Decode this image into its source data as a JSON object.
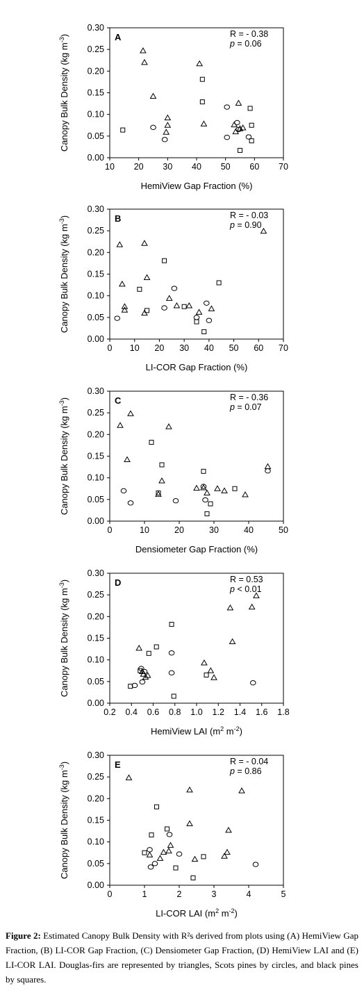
{
  "chart_data": [
    {
      "type": "scatter",
      "panel": "A",
      "xlabel": "HemiView Gap Fraction (%)",
      "ylabel": "Canopy Bulk Density (kg m-3)",
      "xlim": [
        10,
        70
      ],
      "ylim": [
        0,
        0.3
      ],
      "xticks": [
        "10",
        "20",
        "30",
        "40",
        "50",
        "60",
        "70"
      ],
      "yticks": [
        "0.00",
        "0.05",
        "0.10",
        "0.15",
        "0.20",
        "0.25",
        "0.30"
      ],
      "stat_r": "R = - 0.38",
      "stat_p": "p = 0.06",
      "series": [
        {
          "marker": "triangle",
          "points": [
            [
              21.5,
              0.247
            ],
            [
              22,
              0.22
            ],
            [
              25,
              0.142
            ],
            [
              30,
              0.092
            ],
            [
              30,
              0.075
            ],
            [
              29.5,
              0.059
            ],
            [
              41,
              0.217
            ],
            [
              42.5,
              0.078
            ],
            [
              54.5,
              0.126
            ],
            [
              53,
              0.076
            ],
            [
              53.5,
              0.06
            ],
            [
              55,
              0.067
            ],
            [
              56,
              0.069
            ]
          ]
        },
        {
          "marker": "circle",
          "points": [
            [
              25,
              0.07
            ],
            [
              29,
              0.042
            ],
            [
              50.5,
              0.117
            ],
            [
              54,
              0.081
            ],
            [
              54.5,
              0.065
            ],
            [
              50.5,
              0.047
            ],
            [
              58,
              0.048
            ]
          ]
        },
        {
          "marker": "square",
          "points": [
            [
              14.5,
              0.064
            ],
            [
              42,
              0.181
            ],
            [
              42,
              0.129
            ],
            [
              58.5,
              0.114
            ],
            [
              59,
              0.075
            ],
            [
              59,
              0.039
            ],
            [
              55,
              0.017
            ]
          ]
        }
      ]
    },
    {
      "type": "scatter",
      "panel": "B",
      "xlabel": "LI-COR Gap Fraction (%)",
      "ylabel": "Canopy Bulk Density (kg m-3)",
      "xlim": [
        0,
        70
      ],
      "ylim": [
        0,
        0.3
      ],
      "xticks": [
        "0",
        "10",
        "20",
        "30",
        "40",
        "50",
        "60",
        "70"
      ],
      "yticks": [
        "0.00",
        "0.05",
        "0.10",
        "0.15",
        "0.20",
        "0.25",
        "0.30"
      ],
      "stat_r": "R = - 0.03",
      "stat_p": "p = 0.90",
      "series": [
        {
          "marker": "triangle",
          "points": [
            [
              4,
              0.218
            ],
            [
              5,
              0.127
            ],
            [
              6,
              0.075
            ],
            [
              6,
              0.067
            ],
            [
              14,
              0.221
            ],
            [
              15,
              0.142
            ],
            [
              14,
              0.06
            ],
            [
              24,
              0.094
            ],
            [
              27,
              0.077
            ],
            [
              32,
              0.077
            ],
            [
              36,
              0.062
            ],
            [
              41,
              0.07
            ],
            [
              62,
              0.249
            ]
          ]
        },
        {
          "marker": "circle",
          "points": [
            [
              3,
              0.048
            ],
            [
              22,
              0.072
            ],
            [
              26,
              0.117
            ],
            [
              35,
              0.05
            ],
            [
              39,
              0.083
            ],
            [
              40,
              0.043
            ]
          ]
        },
        {
          "marker": "square",
          "points": [
            [
              12,
              0.115
            ],
            [
              15,
              0.066
            ],
            [
              22,
              0.181
            ],
            [
              30,
              0.075
            ],
            [
              35,
              0.04
            ],
            [
              38,
              0.017
            ],
            [
              44,
              0.13
            ]
          ]
        }
      ]
    },
    {
      "type": "scatter",
      "panel": "C",
      "xlabel": "Densiometer Gap Fraction (%)",
      "ylabel": "Canopy Bulk Density (kg m-3)",
      "xlim": [
        0,
        50
      ],
      "ylim": [
        0,
        0.3
      ],
      "xticks": [
        "0",
        "10",
        "20",
        "30",
        "40",
        "50"
      ],
      "yticks": [
        "0.00",
        "0.05",
        "0.10",
        "0.15",
        "0.20",
        "0.25",
        "0.30"
      ],
      "stat_r": "R = - 0.36",
      "stat_p": "p = 0.07",
      "series": [
        {
          "marker": "triangle",
          "points": [
            [
              3,
              0.221
            ],
            [
              6,
              0.248
            ],
            [
              5,
              0.142
            ],
            [
              14,
              0.062
            ],
            [
              15,
              0.093
            ],
            [
              17,
              0.218
            ],
            [
              25,
              0.076
            ],
            [
              27,
              0.077
            ],
            [
              28,
              0.065
            ],
            [
              31,
              0.075
            ],
            [
              33,
              0.07
            ],
            [
              39,
              0.061
            ],
            [
              45.5,
              0.126
            ]
          ]
        },
        {
          "marker": "circle",
          "points": [
            [
              4,
              0.07
            ],
            [
              6,
              0.042
            ],
            [
              19,
              0.047
            ],
            [
              27,
              0.08
            ],
            [
              27.5,
              0.049
            ],
            [
              45.5,
              0.116
            ]
          ]
        },
        {
          "marker": "square",
          "points": [
            [
              12,
              0.182
            ],
            [
              14,
              0.065
            ],
            [
              15,
              0.13
            ],
            [
              27,
              0.115
            ],
            [
              28,
              0.017
            ],
            [
              29,
              0.04
            ],
            [
              36,
              0.075
            ]
          ]
        }
      ]
    },
    {
      "type": "scatter",
      "panel": "D",
      "xlabel": "HemiView LAI (m2 m-2)",
      "ylabel": "Canopy Bulk Density (kg m-3)",
      "xlim": [
        0.2,
        1.8
      ],
      "ylim": [
        0,
        0.3
      ],
      "xticks": [
        "0.2",
        "0.4",
        "0.6",
        "0.8",
        "1.0",
        "1.2",
        "1.4",
        "1.6",
        "1.8"
      ],
      "yticks": [
        "0.00",
        "0.05",
        "0.10",
        "0.15",
        "0.20",
        "0.25",
        "0.30"
      ],
      "stat_r": "R = 0.53",
      "stat_p": "p < 0.01",
      "series": [
        {
          "marker": "triangle",
          "points": [
            [
              0.47,
              0.127
            ],
            [
              0.5,
              0.073
            ],
            [
              0.51,
              0.067
            ],
            [
              0.53,
              0.06
            ],
            [
              0.55,
              0.064
            ],
            [
              1.07,
              0.093
            ],
            [
              1.13,
              0.075
            ],
            [
              1.16,
              0.059
            ],
            [
              1.31,
              0.22
            ],
            [
              1.33,
              0.142
            ],
            [
              1.51,
              0.222
            ],
            [
              1.55,
              0.248
            ]
          ]
        },
        {
          "marker": "circle",
          "points": [
            [
              0.43,
              0.041
            ],
            [
              0.49,
              0.08
            ],
            [
              0.5,
              0.049
            ],
            [
              0.52,
              0.073
            ],
            [
              0.77,
              0.116
            ],
            [
              0.77,
              0.07
            ],
            [
              1.52,
              0.047
            ]
          ]
        },
        {
          "marker": "square",
          "points": [
            [
              0.39,
              0.039
            ],
            [
              0.48,
              0.075
            ],
            [
              0.56,
              0.115
            ],
            [
              0.63,
              0.13
            ],
            [
              0.77,
              0.182
            ],
            [
              0.79,
              0.016
            ],
            [
              1.09,
              0.065
            ]
          ]
        }
      ]
    },
    {
      "type": "scatter",
      "panel": "E",
      "xlabel": "LI-COR LAI (m2 m-2)",
      "ylabel": "Canopy Bulk Density (kg m-3)",
      "xlim": [
        0,
        5
      ],
      "ylim": [
        0,
        0.3
      ],
      "xticks": [
        "0",
        "1",
        "2",
        "3",
        "4",
        "5"
      ],
      "yticks": [
        "0.00",
        "0.05",
        "0.10",
        "0.15",
        "0.20",
        "0.25",
        "0.30"
      ],
      "stat_r": "R = - 0.04",
      "stat_p": "p = 0.86",
      "series": [
        {
          "marker": "triangle",
          "points": [
            [
              0.55,
              0.248
            ],
            [
              1.15,
              0.07
            ],
            [
              1.45,
              0.062
            ],
            [
              1.55,
              0.076
            ],
            [
              1.75,
              0.092
            ],
            [
              1.7,
              0.079
            ],
            [
              2.3,
              0.142
            ],
            [
              2.3,
              0.22
            ],
            [
              2.45,
              0.06
            ],
            [
              3.3,
              0.067
            ],
            [
              3.38,
              0.076
            ],
            [
              3.42,
              0.127
            ],
            [
              3.8,
              0.218
            ]
          ]
        },
        {
          "marker": "circle",
          "points": [
            [
              1.15,
              0.082
            ],
            [
              1.18,
              0.042
            ],
            [
              1.3,
              0.05
            ],
            [
              1.72,
              0.117
            ],
            [
              2.0,
              0.072
            ],
            [
              4.2,
              0.048
            ]
          ]
        },
        {
          "marker": "square",
          "points": [
            [
              1.0,
              0.075
            ],
            [
              1.2,
              0.116
            ],
            [
              1.35,
              0.181
            ],
            [
              1.65,
              0.13
            ],
            [
              1.9,
              0.04
            ],
            [
              2.4,
              0.017
            ],
            [
              2.7,
              0.066
            ]
          ]
        }
      ]
    }
  ],
  "caption": {
    "label": "Figure 2:",
    "text": " Estimated Canopy Bulk Density with R²s derived from plots using (A) HemiView Gap Fraction, (B) LI-COR Gap Fraction, (C) Densiometer Gap Fraction, (D) HemiView LAI and (E) LI-COR LAI. Douglas-firs are represented by triangles, Scots pines by circles, and black pines by squares."
  }
}
